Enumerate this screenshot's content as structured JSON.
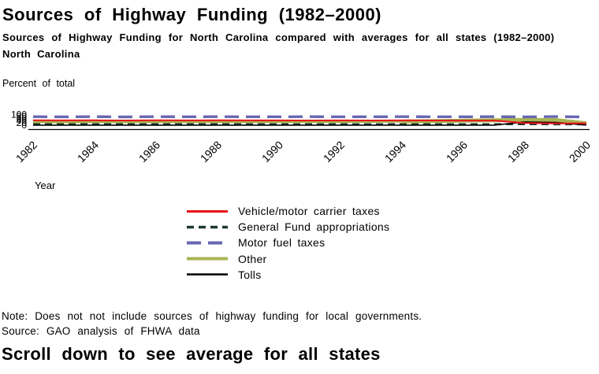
{
  "header": {
    "title": "Sources of Highway Funding (1982–2000)",
    "subtitle": "Sources of Highway Funding for North Carolina compared with averages for all states (1982–2000)",
    "region_label": "North Carolina"
  },
  "chart_data": {
    "type": "line",
    "title": "North Carolina",
    "ylabel": "Percent of total",
    "xlabel": "Year",
    "ylim": [
      0,
      100
    ],
    "grid": false,
    "legend_position": "below-chart-left",
    "y_ticks": [
      100,
      80,
      60,
      40,
      20,
      0
    ],
    "x_ticks": [
      1982,
      1984,
      1986,
      1988,
      1990,
      1992,
      1994,
      1996,
      1998,
      2000
    ],
    "x": [
      1982,
      1983,
      1984,
      1985,
      1986,
      1987,
      1988,
      1989,
      1990,
      1991,
      1992,
      1993,
      1994,
      1995,
      1996,
      1997,
      1998,
      1999,
      2000
    ],
    "series": [
      {
        "name": "Vehicle/motor carrier taxes",
        "color": "#ea1118",
        "dash": null,
        "width": 2,
        "values": [
          46,
          45,
          46,
          44.5,
          46,
          45,
          46,
          45,
          45.5,
          44.5,
          45.5,
          44.5,
          45,
          44.5,
          44,
          43.5,
          21,
          17,
          18
        ]
      },
      {
        "name": "General Fund appropriations",
        "color": "#1c3a2d",
        "dash": "9,6",
        "width": 2.6,
        "values": [
          10,
          9.5,
          10,
          9,
          10,
          9.5,
          10,
          9,
          9.5,
          9,
          9.5,
          9,
          9.5,
          9,
          9,
          9,
          9.5,
          9,
          9
        ]
      },
      {
        "name": "Motor fuel taxes",
        "color": "#6767b2",
        "dash": "18,9",
        "width": 3.4,
        "values": [
          80,
          78.5,
          80,
          78,
          80,
          79,
          80,
          79.5,
          79,
          80,
          79.5,
          79,
          80,
          79.5,
          79,
          80,
          78.5,
          81,
          77
        ]
      },
      {
        "name": "Other",
        "color": "#a9b455",
        "dash": null,
        "width": 3,
        "values": [
          30,
          29,
          30,
          29.5,
          30,
          30,
          30.5,
          30,
          31,
          31,
          32,
          33,
          35,
          38,
          42,
          47,
          50,
          48,
          18
        ]
      },
      {
        "name": "Tolls",
        "color": "#000000",
        "dash": null,
        "width": 1.6,
        "values": [
          0.5,
          0.5,
          0.5,
          0.5,
          0.5,
          0.5,
          0.5,
          0.5,
          0.5,
          0.5,
          0.5,
          0.5,
          0.5,
          0.5,
          0.5,
          0.5,
          30,
          25,
          1.5
        ]
      }
    ]
  },
  "notes": {
    "note": "Note: Does not not include sources of highway funding for local governments.",
    "source": "Source: GAO analysis of FHWA data"
  },
  "footer": {
    "scroll_text": "Scroll down to see average for all states"
  }
}
